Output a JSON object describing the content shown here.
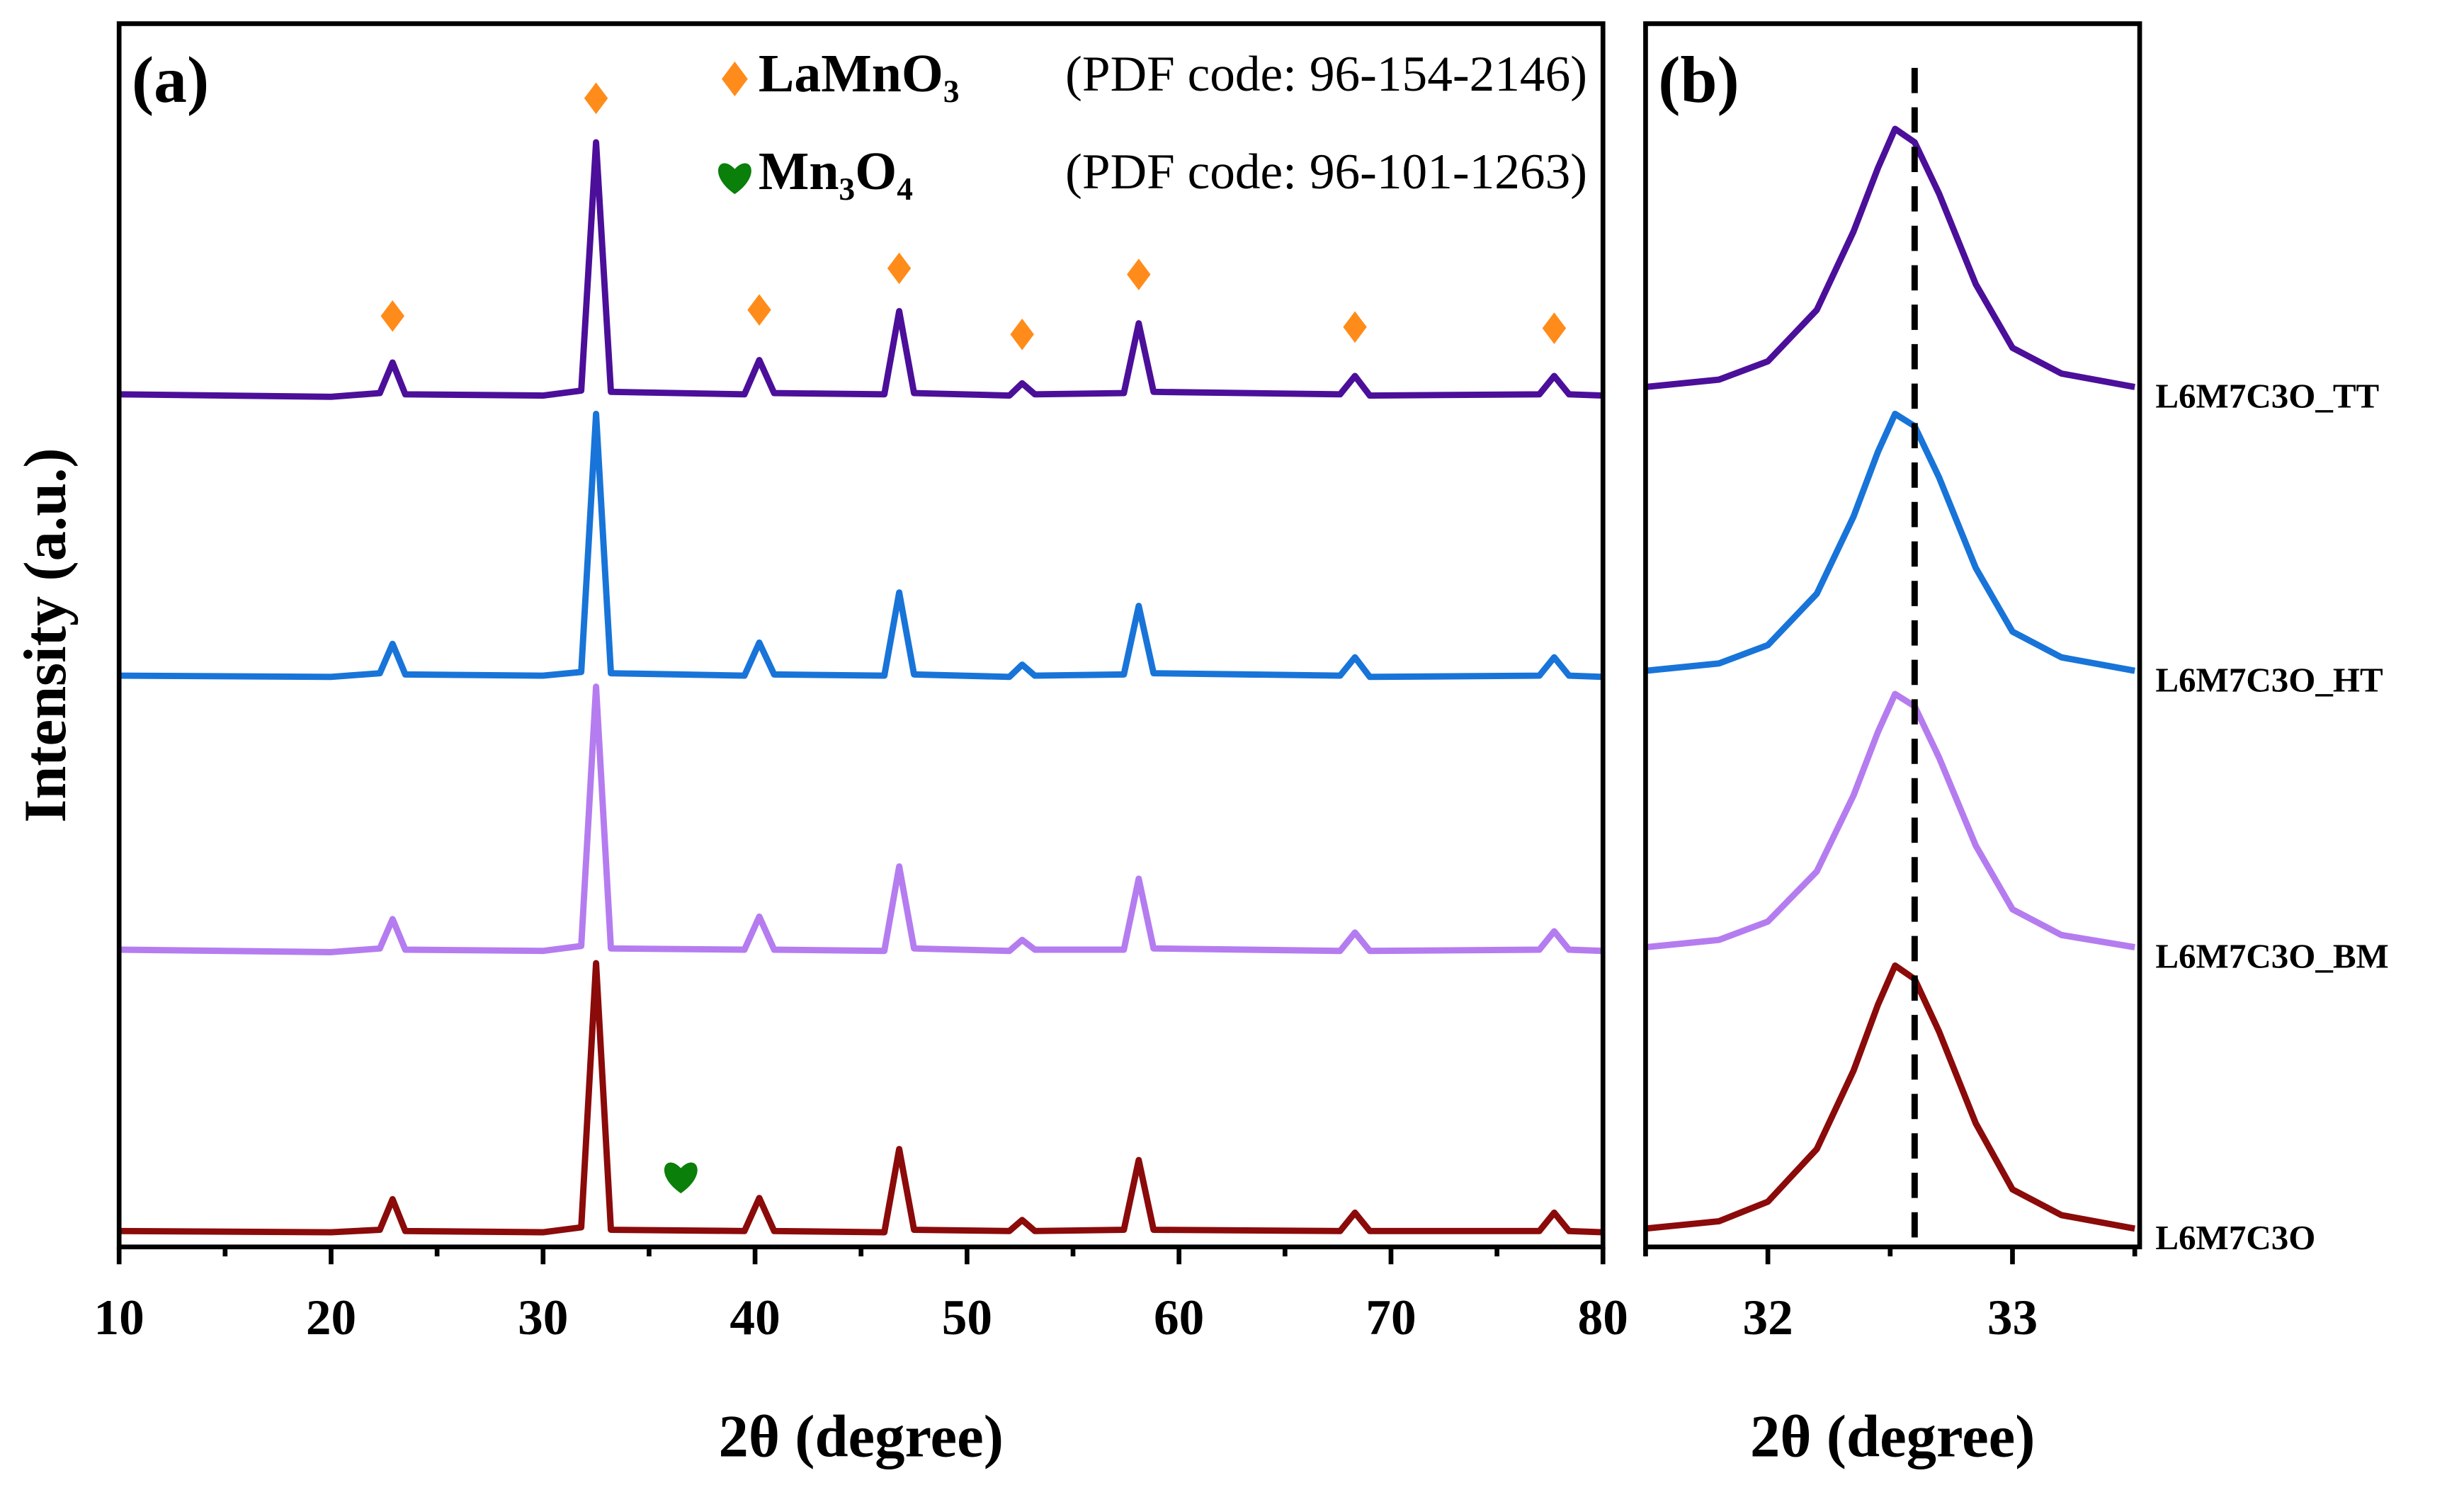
{
  "chart_data": [
    {
      "type": "line",
      "panel_label": "(a)",
      "xlabel": "2θ (degree)",
      "ylabel": "Intensity (a.u.)",
      "xlim": [
        10,
        80
      ],
      "ylim": [
        0,
        100
      ],
      "xticks": [
        10,
        20,
        30,
        40,
        50,
        60,
        70,
        80
      ],
      "xminorticks": [
        15,
        25,
        35,
        45,
        55,
        65,
        75
      ],
      "x": [
        10,
        20,
        22.3,
        22.9,
        23.5,
        30,
        31.8,
        32.5,
        33.2,
        39.5,
        40.2,
        40.9,
        46.1,
        46.8,
        47.5,
        52,
        52.6,
        53.2,
        57.4,
        58.1,
        58.8,
        67.6,
        68.3,
        69,
        77,
        77.7,
        78.4,
        80
      ],
      "series": [
        {
          "color": "#4b0f9a",
          "values": [
            69.7,
            69.5,
            69.8,
            72.3,
            69.7,
            69.6,
            70.0,
            90.3,
            69.9,
            69.7,
            72.5,
            69.8,
            69.7,
            76.5,
            69.8,
            69.6,
            70.6,
            69.7,
            69.8,
            75.5,
            69.9,
            69.7,
            71.2,
            69.6,
            69.7,
            71.2,
            69.7,
            69.6
          ]
        },
        {
          "color": "#1874d8",
          "values": [
            46.7,
            46.6,
            46.9,
            49.3,
            46.8,
            46.7,
            47.0,
            68.1,
            46.9,
            46.7,
            49.4,
            46.8,
            46.7,
            53.5,
            46.8,
            46.6,
            47.6,
            46.7,
            46.8,
            52.4,
            46.9,
            46.7,
            48.2,
            46.6,
            46.7,
            48.2,
            46.7,
            46.6
          ]
        },
        {
          "color": "#b57cf0",
          "values": [
            24.3,
            24.1,
            24.4,
            26.8,
            24.3,
            24.2,
            24.6,
            45.8,
            24.4,
            24.3,
            27.0,
            24.3,
            24.2,
            31.1,
            24.4,
            24.2,
            25.1,
            24.3,
            24.3,
            30.1,
            24.4,
            24.2,
            25.7,
            24.2,
            24.3,
            25.8,
            24.3,
            24.2
          ]
        },
        {
          "color": "#8b0a0a",
          "values": [
            1.3,
            1.2,
            1.4,
            3.9,
            1.3,
            1.2,
            1.6,
            23.2,
            1.4,
            1.3,
            4.0,
            1.3,
            1.2,
            8.0,
            1.4,
            1.3,
            2.2,
            1.3,
            1.4,
            7.1,
            1.4,
            1.3,
            2.8,
            1.3,
            1.3,
            2.8,
            1.3,
            1.2
          ]
        }
      ],
      "markers": [
        {
          "symbol": "diamond",
          "color": "#ff8c1a",
          "x": 22.9,
          "y": 76.1
        },
        {
          "symbol": "diamond",
          "color": "#ff8c1a",
          "x": 32.5,
          "y": 93.9
        },
        {
          "symbol": "diamond",
          "color": "#ff8c1a",
          "x": 40.2,
          "y": 76.6
        },
        {
          "symbol": "diamond",
          "color": "#ff8c1a",
          "x": 46.8,
          "y": 80.0
        },
        {
          "symbol": "diamond",
          "color": "#ff8c1a",
          "x": 52.6,
          "y": 74.6
        },
        {
          "symbol": "diamond",
          "color": "#ff8c1a",
          "x": 58.1,
          "y": 79.5
        },
        {
          "symbol": "diamond",
          "color": "#ff8c1a",
          "x": 68.3,
          "y": 75.2
        },
        {
          "symbol": "diamond",
          "color": "#ff8c1a",
          "x": 77.7,
          "y": 75.1
        },
        {
          "symbol": "heart",
          "color": "#0a7f0a",
          "x": 36.5,
          "y": 5.8
        }
      ],
      "legend": [
        {
          "symbol": "diamond",
          "color": "#ff8c1a",
          "formula": "LaMnO₃",
          "text": "(PDF code: 96-154-2146)"
        },
        {
          "symbol": "heart",
          "color": "#0a7f0a",
          "formula": "Mn₃O₄",
          "text": "(PDF code: 96-101-1263)"
        }
      ]
    },
    {
      "type": "line",
      "panel_label": "(b)",
      "xlabel": "2θ (degree)",
      "xlim": [
        31.5,
        33.52
      ],
      "ylim": [
        0,
        100
      ],
      "xticks": [
        32,
        33
      ],
      "xminorticks": [
        31.5,
        32.5,
        33.5
      ],
      "reference_line": {
        "x": 32.6
      },
      "x": [
        31.5,
        31.8,
        32.0,
        32.2,
        32.35,
        32.45,
        32.52,
        32.6,
        32.7,
        32.85,
        33.0,
        33.2,
        33.5
      ],
      "series": [
        {
          "name": "L6M7C3O_TT",
          "color": "#4b0f9a",
          "values": [
            70.3,
            70.9,
            72.4,
            76.6,
            83.0,
            88.2,
            91.4,
            90.3,
            86.1,
            78.7,
            73.5,
            71.4,
            70.3
          ]
        },
        {
          "name": "L6M7C3O_HT",
          "color": "#1874d8",
          "values": [
            47.1,
            47.7,
            49.2,
            53.4,
            59.7,
            65.0,
            68.1,
            67.1,
            62.9,
            55.5,
            50.3,
            48.2,
            47.1
          ]
        },
        {
          "name": "L6M7C3O_BM",
          "color": "#b57cf0",
          "values": [
            24.5,
            25.1,
            26.6,
            30.7,
            36.9,
            42.1,
            45.2,
            44.2,
            40.0,
            32.8,
            27.6,
            25.5,
            24.5
          ]
        },
        {
          "name": "L6M7C3O",
          "color": "#8b0a0a",
          "values": [
            1.5,
            2.1,
            3.7,
            8.0,
            14.4,
            19.8,
            23.0,
            21.9,
            17.6,
            10.1,
            4.7,
            2.6,
            1.5
          ]
        }
      ]
    }
  ]
}
